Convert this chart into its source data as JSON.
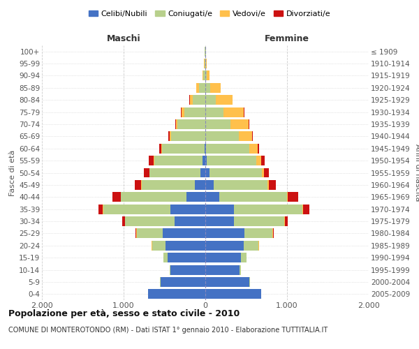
{
  "age_groups": [
    "0-4",
    "5-9",
    "10-14",
    "15-19",
    "20-24",
    "25-29",
    "30-34",
    "35-39",
    "40-44",
    "45-49",
    "50-54",
    "55-59",
    "60-64",
    "65-69",
    "70-74",
    "75-79",
    "80-84",
    "85-89",
    "90-94",
    "95-99",
    "100+"
  ],
  "birth_years": [
    "2005-2009",
    "2000-2004",
    "1995-1999",
    "1990-1994",
    "1985-1989",
    "1980-1984",
    "1975-1979",
    "1970-1974",
    "1965-1969",
    "1960-1964",
    "1955-1959",
    "1950-1954",
    "1945-1949",
    "1940-1944",
    "1935-1939",
    "1930-1934",
    "1925-1929",
    "1920-1924",
    "1915-1919",
    "1910-1914",
    "≤ 1909"
  ],
  "male": {
    "celibi": [
      700,
      550,
      430,
      460,
      490,
      520,
      380,
      430,
      230,
      130,
      60,
      30,
      10,
      0,
      0,
      0,
      0,
      0,
      0,
      0,
      0
    ],
    "coniugati": [
      5,
      5,
      10,
      50,
      160,
      320,
      600,
      820,
      800,
      650,
      620,
      590,
      520,
      420,
      340,
      260,
      150,
      80,
      25,
      10,
      5
    ],
    "vedovi": [
      0,
      0,
      0,
      0,
      5,
      5,
      5,
      5,
      5,
      5,
      5,
      10,
      10,
      20,
      20,
      30,
      40,
      30,
      10,
      5,
      0
    ],
    "divorziati": [
      0,
      0,
      0,
      0,
      5,
      10,
      30,
      50,
      100,
      80,
      70,
      60,
      20,
      10,
      10,
      5,
      5,
      0,
      0,
      0,
      0
    ]
  },
  "female": {
    "nubili": [
      680,
      540,
      420,
      440,
      470,
      480,
      350,
      350,
      170,
      100,
      50,
      20,
      10,
      0,
      0,
      0,
      0,
      0,
      0,
      0,
      0
    ],
    "coniugate": [
      5,
      5,
      15,
      60,
      180,
      340,
      620,
      840,
      830,
      660,
      640,
      600,
      530,
      410,
      310,
      220,
      130,
      60,
      20,
      10,
      5
    ],
    "vedove": [
      0,
      0,
      0,
      0,
      5,
      5,
      5,
      10,
      10,
      20,
      30,
      60,
      100,
      160,
      220,
      250,
      200,
      130,
      30,
      10,
      0
    ],
    "divorziate": [
      0,
      0,
      0,
      0,
      5,
      10,
      30,
      70,
      130,
      80,
      60,
      50,
      20,
      10,
      10,
      5,
      5,
      0,
      0,
      0,
      0
    ]
  },
  "colors": {
    "celibi": "#4472c4",
    "coniugati": "#b8d08c",
    "vedovi": "#ffc04c",
    "divorziati": "#cc1111"
  },
  "xlim": 2000,
  "title": "Popolazione per età, sesso e stato civile - 2010",
  "subtitle": "COMUNE DI MONTEROTONDO (RM) - Dati ISTAT 1° gennaio 2010 - Elaborazione TUTTITALIA.IT",
  "xlabel_left": "Maschi",
  "xlabel_right": "Femmine",
  "ylabel_left": "Fasce di età",
  "ylabel_right": "Anni di nascita",
  "legend_labels": [
    "Celibi/Nubili",
    "Coniugati/e",
    "Vedovi/e",
    "Divorziati/e"
  ]
}
